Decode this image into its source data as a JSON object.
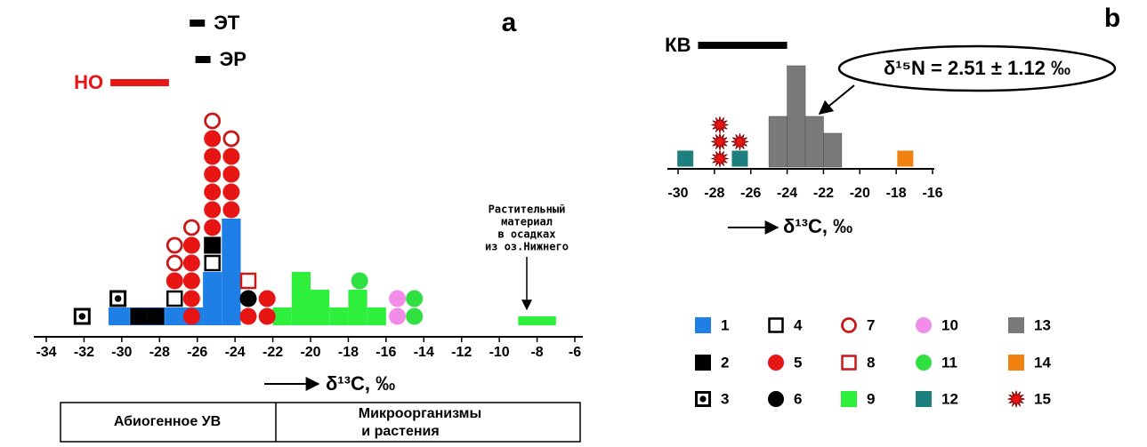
{
  "chart_data": [
    {
      "type": "dotplot",
      "panel": "a",
      "xlim": [
        -34,
        -6
      ],
      "xticks": [
        -34,
        -32,
        -30,
        -28,
        -26,
        -24,
        -22,
        -20,
        -18,
        -16,
        -14,
        -12,
        -10,
        -8,
        -6
      ],
      "x_label": "δ¹³C, ‰",
      "series": [
        {
          "name": "1",
          "color": "#1e80e6",
          "marker": "bar",
          "bins": [
            -30.7,
            -29.6,
            -27.7,
            -25.7,
            -24.7,
            -23.7
          ],
          "values": [
            1,
            1,
            1,
            3,
            6
          ]
        },
        {
          "name": "2",
          "color": "#000000",
          "marker": "square",
          "x": [
            -29.1,
            -28.2,
            -25.2
          ],
          "y": [
            1,
            1,
            5
          ]
        },
        {
          "name": "3",
          "color": "#000000",
          "marker": "dot-square",
          "x": [
            -32.1,
            -30.2
          ],
          "y": [
            1,
            2
          ]
        },
        {
          "name": "4",
          "color": "#000000",
          "marker": "open-square",
          "x": [
            -27.2,
            -25.2
          ],
          "y": [
            2,
            4
          ]
        },
        {
          "name": "5",
          "color": "#e81515",
          "marker": "circle",
          "x": [
            -27.2,
            -26.3,
            -26.3,
            -26.3,
            -26.3,
            -26.3,
            -25.2,
            -25.2,
            -25.2,
            -25.2,
            -25.2,
            -25.2,
            -24.2,
            -24.2,
            -24.2,
            -24.2,
            -23.3,
            -22.3,
            -22.3
          ],
          "y": [
            3,
            1,
            2,
            3,
            4,
            5,
            6,
            7,
            8,
            9,
            10,
            11,
            7,
            8,
            9,
            10,
            1,
            1,
            2
          ]
        },
        {
          "name": "6",
          "color": "#000000",
          "marker": "circle",
          "x": [
            -23.3
          ],
          "y": [
            2
          ]
        },
        {
          "name": "7",
          "color": "#c81818",
          "marker": "open-circle",
          "x": [
            -27.2,
            -27.2,
            -26.3,
            -25.2,
            -24.2
          ],
          "y": [
            4,
            5,
            6,
            12,
            11
          ]
        },
        {
          "name": "8",
          "color": "#c81818",
          "marker": "open-square",
          "x": [
            -23.3
          ],
          "y": [
            3
          ]
        },
        {
          "name": "9",
          "color": "#2ef03c",
          "marker": "bar",
          "bins": [
            -22,
            -21,
            -20,
            -19,
            -18,
            -17,
            -16,
            -9,
            -7
          ],
          "values": [
            1,
            3,
            2,
            1,
            2,
            1,
            null,
            0.5
          ]
        },
        {
          "name": "10",
          "color": "#f28ce8",
          "marker": "circle",
          "x": [
            -15.4,
            -15.4
          ],
          "y": [
            1,
            2
          ]
        },
        {
          "name": "11",
          "color": "#2fe040",
          "marker": "circle",
          "x": [
            -17.4,
            -14.5,
            -14.5
          ],
          "y": [
            3,
            1,
            2
          ]
        }
      ],
      "ranges": [
        {
          "label": "ЭТ",
          "from": -26.4,
          "to": -25.6,
          "color": "#000000"
        },
        {
          "label": "ЭР",
          "from": -26.1,
          "to": -25.3,
          "color": "#000000"
        },
        {
          "label": "НО",
          "from": -30.6,
          "to": -27.5,
          "color": "#e81515"
        }
      ],
      "annotation_lines": [
        "Растительный",
        "материал",
        "в осадках",
        "из оз.Нижнего"
      ]
    },
    {
      "type": "dotplot",
      "panel": "b",
      "xlim": [
        -30,
        -16
      ],
      "xticks": [
        -30,
        -28,
        -26,
        -24,
        -22,
        -20,
        -18,
        -16
      ],
      "x_label": "δ¹³C, ‰",
      "series": [
        {
          "name": "12",
          "color": "#1e7f7f",
          "marker": "square",
          "x": [
            -29.6,
            -26.6
          ],
          "y": [
            1,
            1
          ]
        },
        {
          "name": "13",
          "color": "#7a7a7a",
          "marker": "bar",
          "bins": [
            -25,
            -24,
            -23,
            -22,
            -21
          ],
          "values": [
            3,
            6,
            3,
            2
          ]
        },
        {
          "name": "14",
          "color": "#f08010",
          "marker": "square",
          "x": [
            -17.5
          ],
          "y": [
            1
          ]
        },
        {
          "name": "15",
          "color": "#e81515",
          "marker": "star",
          "x": [
            -27.7,
            -27.7,
            -27.7,
            -26.6
          ],
          "y": [
            1,
            2,
            3,
            2
          ]
        }
      ],
      "ranges": [
        {
          "label": "КВ",
          "from": -28.9,
          "to": -24.0,
          "color": "#000000"
        }
      ],
      "annotation": "δ¹⁵N = 2.51 ± 1.12 ‰"
    }
  ],
  "footer": [
    [
      "Абиогенное УВ"
    ],
    [
      "Микроорганизмы",
      "и растения"
    ]
  ]
}
